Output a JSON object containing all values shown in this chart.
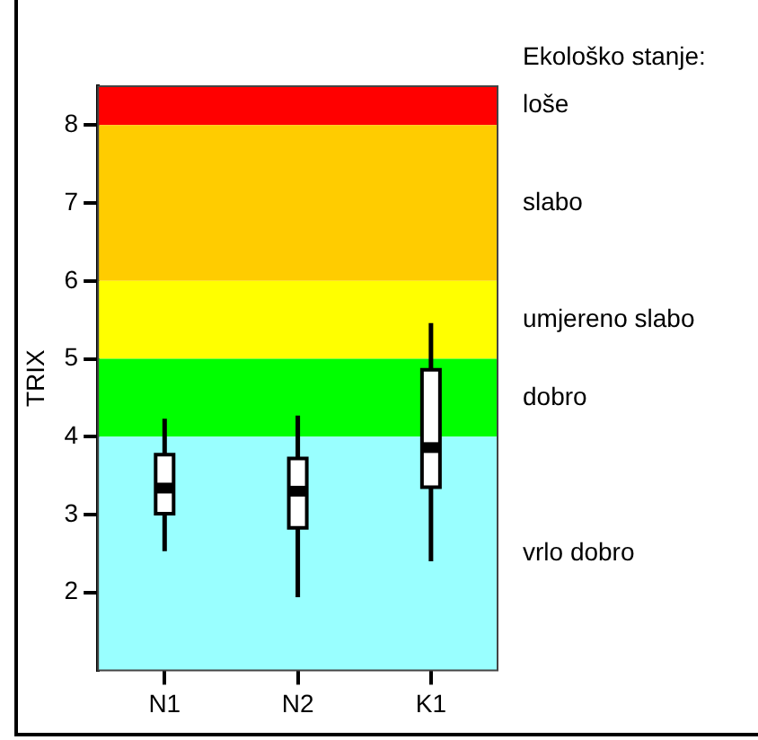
{
  "chart_data": {
    "type": "box",
    "ylabel": "TRIX",
    "legend_title": "Ekološko stanje:",
    "categories": [
      "N1",
      "N2",
      "K1"
    ],
    "boxes": [
      {
        "low": 2.53,
        "q1": 3.01,
        "median": 3.34,
        "q3": 3.77,
        "high": 4.23
      },
      {
        "low": 1.94,
        "q1": 2.83,
        "median": 3.3,
        "q3": 3.72,
        "high": 4.27
      },
      {
        "low": 2.4,
        "q1": 3.35,
        "median": 3.86,
        "q3": 4.86,
        "high": 5.46
      }
    ],
    "ylim": [
      1,
      8.5
    ],
    "yticks": [
      2,
      3,
      4,
      5,
      6,
      7,
      8
    ],
    "bands": [
      {
        "axis": "y",
        "from": 8,
        "to": 8.5,
        "label": "loše",
        "color": "#ff0000"
      },
      {
        "axis": "y",
        "from": 6,
        "to": 8,
        "label": "slabo",
        "color": "#ffcc00"
      },
      {
        "axis": "y",
        "from": 5,
        "to": 6,
        "label": "umjereno slabo",
        "color": "#ffff00"
      },
      {
        "axis": "y",
        "from": 4,
        "to": 5,
        "label": "dobro",
        "color": "#00ff00"
      },
      {
        "axis": "y",
        "from": 1,
        "to": 4,
        "label": "vrlo dobro",
        "color": "#99ffff"
      }
    ]
  }
}
